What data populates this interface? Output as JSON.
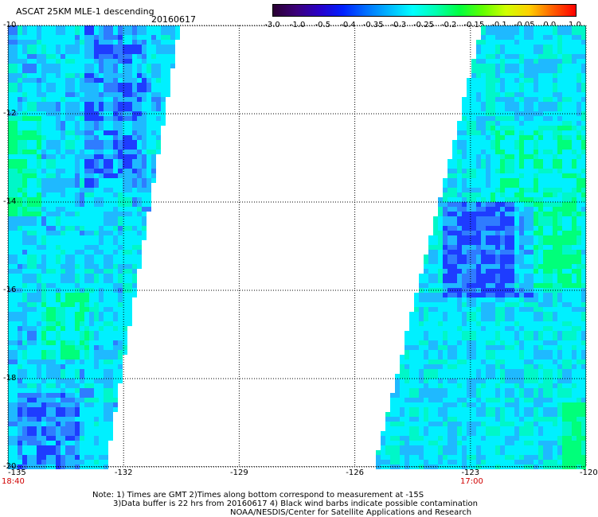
{
  "header": {
    "title": "ASCAT 25KM MLE-1 descending",
    "date": "20160617"
  },
  "colorbar": {
    "labels": [
      "-3.0",
      "-1.0",
      "-0.5",
      "-0.4",
      "-0.35",
      "-0.3",
      "-0.25",
      "-0.2",
      "-0.15",
      "-0.1",
      "-0.05",
      "0.0",
      "1.0"
    ],
    "colors": [
      "#2a0032",
      "#3b007a",
      "#2800c8",
      "#0020ff",
      "#0070ff",
      "#00b8ff",
      "#00ffff",
      "#00ffb0",
      "#00ff40",
      "#60ff00",
      "#d0ff00",
      "#ffd000",
      "#ff6000",
      "#ff0000"
    ]
  },
  "axes": {
    "lon_labels": [
      "-135",
      "-132",
      "-129",
      "-126",
      "-123",
      "-120"
    ],
    "lat_labels": [
      "-10",
      "-12",
      "-14",
      "-16",
      "-18",
      "-20"
    ]
  },
  "times": {
    "left": "18:40",
    "right": "17:00"
  },
  "notes": {
    "line1": "Note: 1) Times are GMT 2)Times along bottom correspond to measurement at -15S",
    "line2": "3)Data buffer is 22 hrs from 20160617 4) Black wind barbs indicate possible contamination",
    "line3": "NOAA/NESDIS/Center for Satellite Applications and Research"
  }
}
